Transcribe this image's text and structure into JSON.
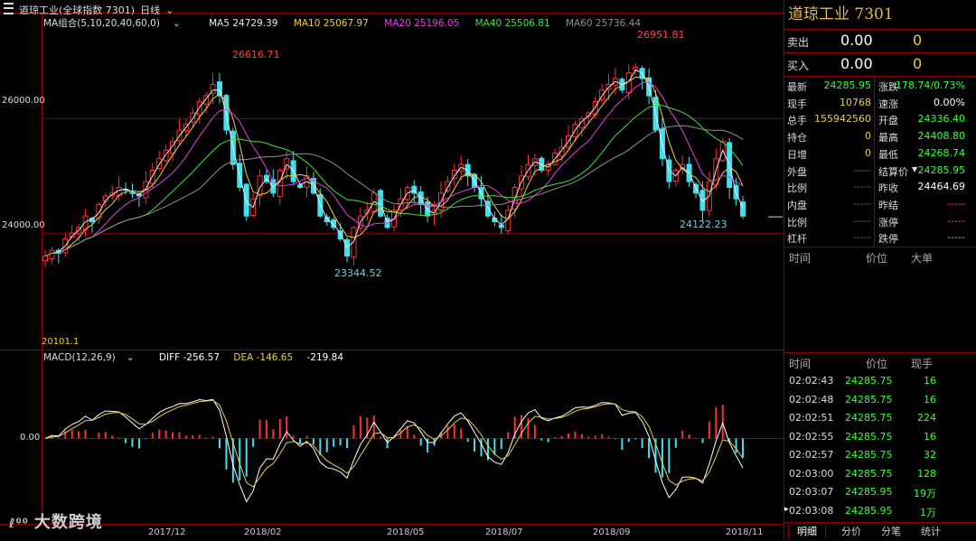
{
  "toolbar": {
    "title": "道琼工业(全球指数 7301)",
    "period": "日线",
    "period_arrow": "⌄"
  },
  "ma": {
    "label": "MA组合(5,10,20,40,60,0)",
    "arrow": "⌄",
    "ma5": "MA5 24729.39",
    "ma10": "MA10 25067.97",
    "ma20": "MA20 25196.05",
    "ma40": "MA40 25506.81",
    "ma60": "MA60 25736.44",
    "colors": {
      "ma5": "#e8e8e8",
      "ma10": "#e8d048",
      "ma20": "#e040e0",
      "ma40": "#40e040",
      "ma60": "#909090"
    }
  },
  "macd": {
    "label": "MACD(12,26,9)",
    "arrow": "⌄",
    "diff": "DIFF -256.57",
    "dea": "DEA -146.65",
    "macd": "-219.84",
    "zero_label": "0.00"
  },
  "price_axis": {
    "labels": [
      "26000.00",
      "24000.00"
    ],
    "values": [
      26000,
      24000
    ]
  },
  "annotations": {
    "high1": "26616.71",
    "high2": "26951.81",
    "low1": "23344.52",
    "low2": "24122.23",
    "start": "20101.1"
  },
  "time_axis": [
    "2017/12",
    "2018/02",
    "2018/05",
    "2018/07",
    "2018/09",
    "2018/11"
  ],
  "watermark": {
    "logo": "ℓ⁰⁰",
    "text": "大数跨境"
  },
  "chart_data": {
    "type": "candlestick",
    "title": "道琼工业(全球指数 7301)",
    "period": "日线",
    "ylim": [
      22000,
      27600
    ],
    "y_ticks": [
      26000,
      24000
    ],
    "x_labels": [
      "2017/12",
      "2018/02",
      "2018/05",
      "2018/07",
      "2018/09",
      "2018/11"
    ],
    "close_series_approx": [
      23600,
      23700,
      23650,
      23900,
      24000,
      24100,
      24300,
      24200,
      24500,
      24650,
      24700,
      24800,
      24750,
      24700,
      24650,
      24900,
      25100,
      25300,
      25450,
      25600,
      25800,
      25900,
      26100,
      26300,
      26400,
      26600,
      26400,
      25800,
      25200,
      24800,
      24300,
      24600,
      25000,
      24900,
      24700,
      25100,
      25300,
      24900,
      24800,
      25000,
      24700,
      24300,
      24200,
      24100,
      23900,
      23600,
      24100,
      24300,
      24400,
      24700,
      24300,
      24100,
      24400,
      24600,
      24800,
      24700,
      24500,
      24300,
      24400,
      24700,
      24900,
      25100,
      25200,
      25000,
      24800,
      24600,
      24300,
      24200,
      24100,
      24400,
      24800,
      25000,
      25200,
      25300,
      25100,
      25200,
      25400,
      25500,
      25700,
      25900,
      26000,
      26100,
      26300,
      26500,
      26600,
      26700,
      26500,
      26800,
      26900,
      26700,
      26400,
      25800,
      25300,
      24900,
      25100,
      25200,
      24900,
      24700,
      24400,
      24900,
      25300,
      25600,
      24800,
      24600,
      24300
    ],
    "annotations": [
      {
        "label": "26616.71",
        "kind": "high"
      },
      {
        "label": "26951.81",
        "kind": "high"
      },
      {
        "label": "23344.52",
        "kind": "low"
      },
      {
        "label": "24122.23",
        "kind": "low"
      }
    ],
    "macd_zero": 0.0
  },
  "panel": {
    "title": "道琼工业  7301",
    "sell": {
      "label": "卖出",
      "price": "0.00",
      "vol": "0"
    },
    "buy": {
      "label": "买入",
      "price": "0.00",
      "vol": "0"
    },
    "grid_left": [
      {
        "label": "最新",
        "value": "24285.95",
        "cls": "green"
      },
      {
        "label": "现手",
        "value": "10768",
        "cls": "yellow"
      },
      {
        "label": "总手",
        "value": "155942560",
        "cls": "yellow"
      },
      {
        "label": "持仓",
        "value": "0",
        "cls": "yellow"
      },
      {
        "label": "日增",
        "value": "0",
        "cls": "yellow"
      },
      {
        "label": "外盘",
        "value": "-----",
        "cls": "dash"
      },
      {
        "label": "比例",
        "value": "-----",
        "cls": "dash"
      },
      {
        "label": "内盘",
        "value": "-----",
        "cls": "dash"
      },
      {
        "label": "比例",
        "value": "-----",
        "cls": "dash"
      },
      {
        "label": "杠杆",
        "value": "-----",
        "cls": "dash"
      }
    ],
    "grid_right": [
      {
        "label": "涨跌",
        "value": "-178.74/0.73%",
        "cls": "green"
      },
      {
        "label": "速涨",
        "value": "0.00%",
        "cls": "white"
      },
      {
        "label": "开盘",
        "value": "24336.40",
        "cls": "green"
      },
      {
        "label": "最高",
        "value": "24408.80",
        "cls": "green"
      },
      {
        "label": "最低",
        "value": "24268.74",
        "cls": "green"
      },
      {
        "label": "结算价",
        "value": "24285.95",
        "cls": "green",
        "arrow": "▼"
      },
      {
        "label": "昨收",
        "value": "24464.69",
        "cls": "white"
      },
      {
        "label": "昨结",
        "value": "-----",
        "cls": "red"
      },
      {
        "label": "涨停",
        "value": "-----",
        "cls": "red"
      },
      {
        "label": "跌停",
        "value": "-----",
        "cls": "green"
      }
    ],
    "bigorder_header": {
      "time": "时间",
      "price": "价位",
      "big": "大单"
    },
    "ticks_header": {
      "time": "时间",
      "price": "价位",
      "vol": "现手"
    },
    "ticks": [
      {
        "time": "02:02:43",
        "price": "24285.75",
        "vol": "16"
      },
      {
        "time": "02:02:48",
        "price": "24285.75",
        "vol": "16"
      },
      {
        "time": "02:02:51",
        "price": "24285.75",
        "vol": "224"
      },
      {
        "time": "02:02:55",
        "price": "24285.75",
        "vol": "16"
      },
      {
        "time": "02:02:57",
        "price": "24285.75",
        "vol": "32"
      },
      {
        "time": "02:03:00",
        "price": "24285.75",
        "vol": "128"
      },
      {
        "time": "02:03:07",
        "price": "24285.95",
        "vol": "19万"
      },
      {
        "time": "02:03:08",
        "price": "24285.95",
        "vol": "1万"
      }
    ],
    "current_marker": "▸",
    "tabs": [
      "明细",
      "分价",
      "分笔",
      "统计"
    ]
  }
}
